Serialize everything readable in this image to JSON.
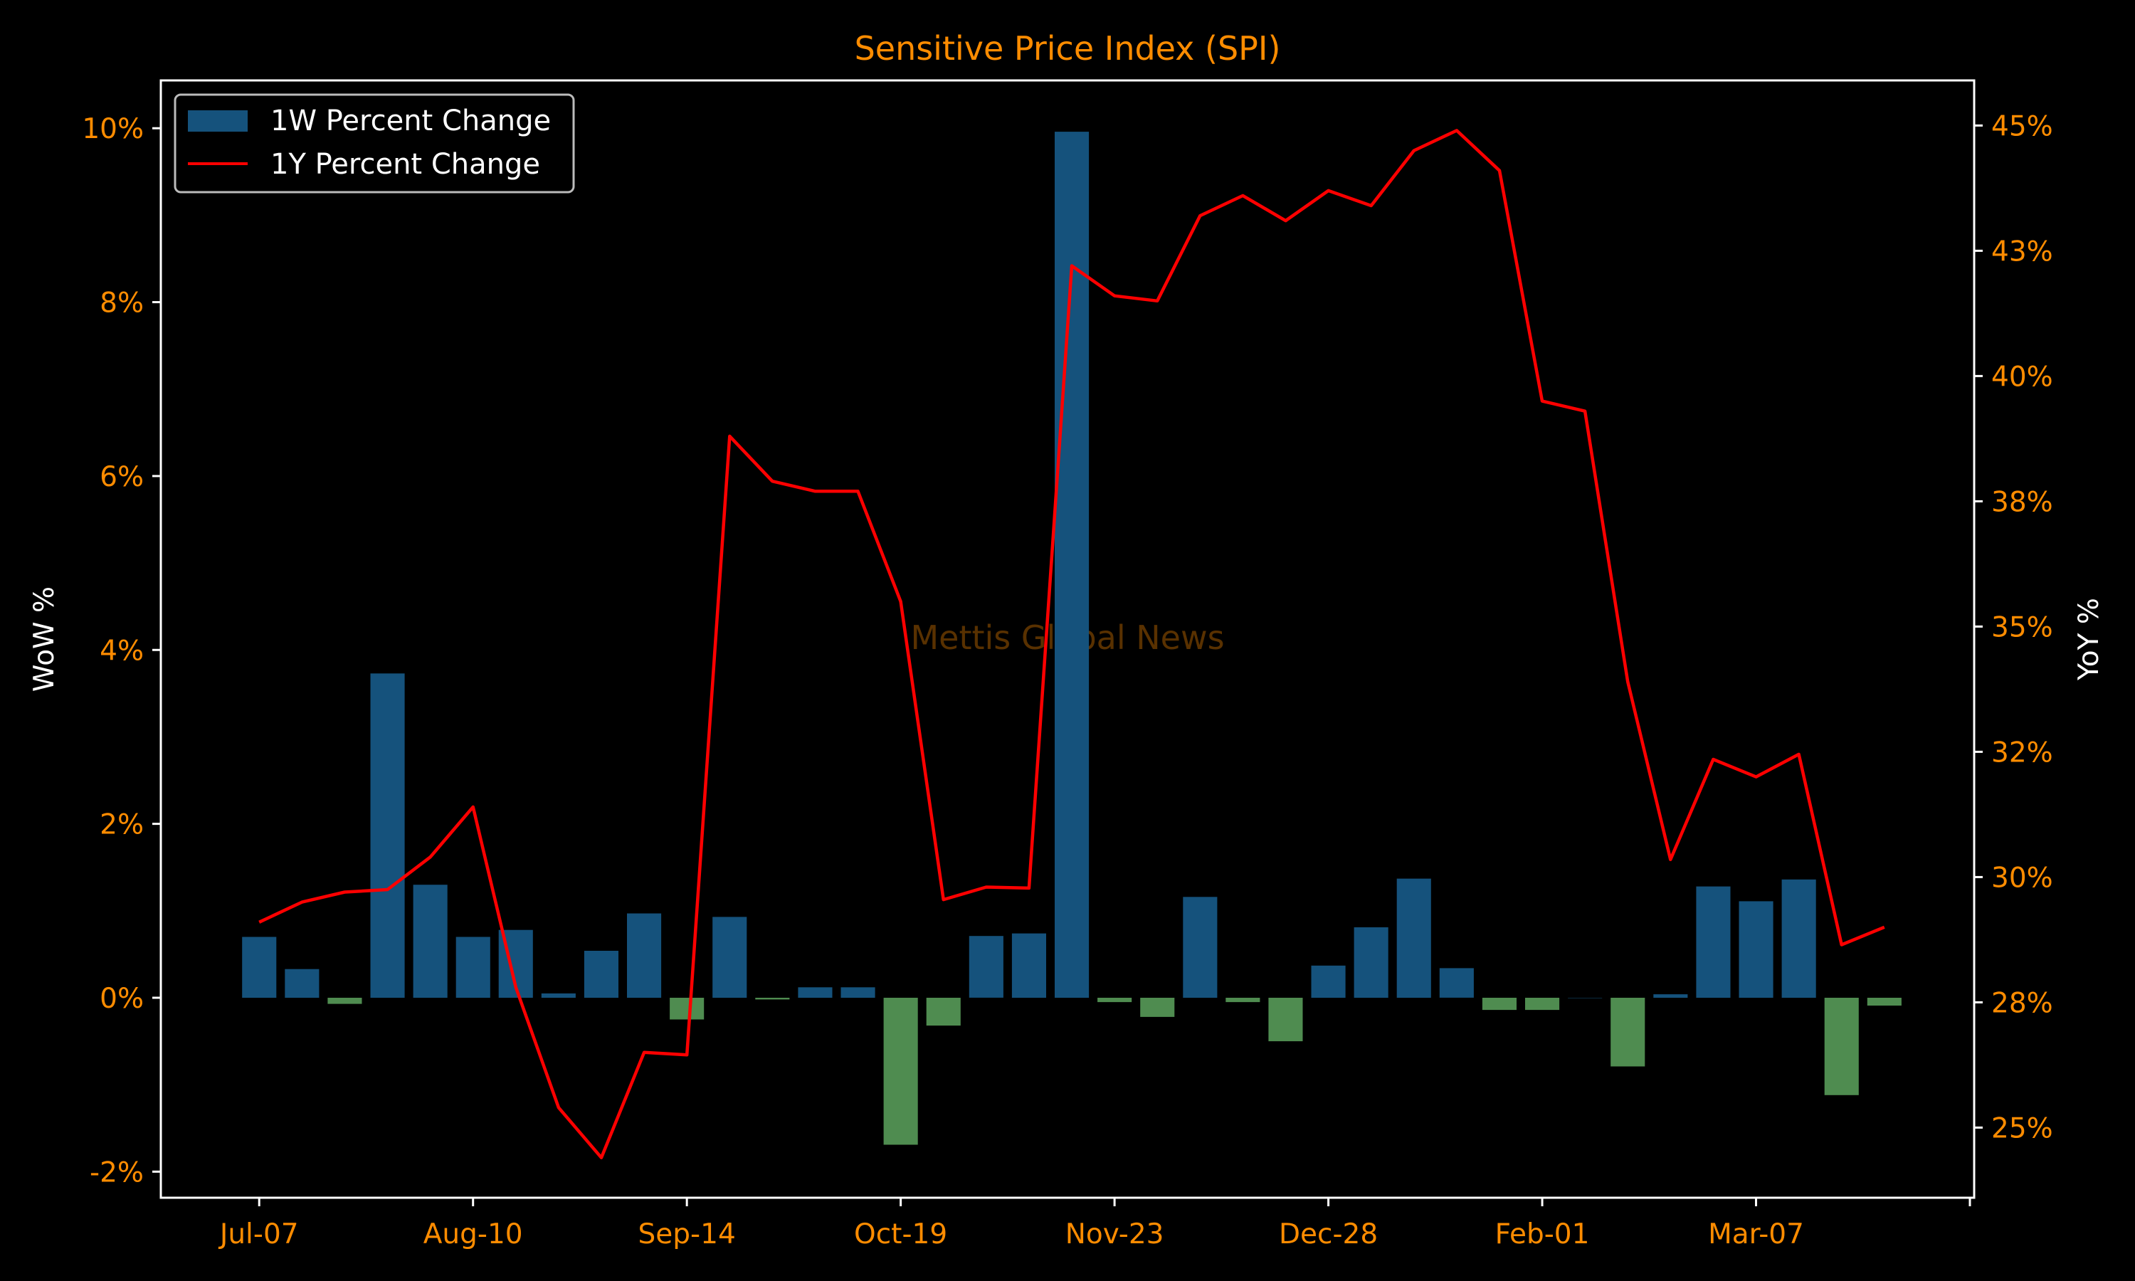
{
  "chart_data": {
    "type": "bar",
    "title": "Sensitive Price Index (SPI)",
    "watermark": "Mettis Global News",
    "left_axis": {
      "label": "WoW %",
      "ylim": [
        -2.3,
        10.55
      ],
      "ticks": [
        -2,
        0,
        2,
        4,
        6,
        8,
        10
      ],
      "tick_labels": [
        "-2%",
        "0%",
        "2%",
        "4%",
        "6%",
        "8%",
        "10%"
      ]
    },
    "right_axis": {
      "label": "YoY %",
      "ylim": [
        23.6,
        45.9
      ],
      "ticks": [
        25,
        27.5,
        30,
        32.5,
        35,
        37.5,
        40,
        42.5,
        45
      ],
      "tick_labels": [
        "25%",
        "28%",
        "30%",
        "32%",
        "35%",
        "38%",
        "40%",
        "43%",
        "45%"
      ]
    },
    "x_tick_labels": [
      "Jul-07",
      "Aug-10",
      "Sep-14",
      "Oct-19",
      "Nov-23",
      "Dec-28",
      "Feb-01",
      "Mar-07",
      ""
    ],
    "x_tick_index": [
      0,
      5,
      10,
      15,
      20,
      25,
      30,
      35,
      40
    ],
    "x_range": [
      -2.3,
      40.1
    ],
    "grid": false,
    "legend_position": "top-left",
    "colors": {
      "positive_bar": "#15527c",
      "negative_bar": "#4f8c50",
      "line": "#ff0000",
      "axis": "#ffffff",
      "tick_text": "#ff8c00"
    },
    "series": [
      {
        "name": "1W Percent Change",
        "type": "bar",
        "axis": "left",
        "values": [
          0.7,
          0.33,
          -0.07,
          3.73,
          1.3,
          0.7,
          0.78,
          0.05,
          0.54,
          0.97,
          -0.25,
          0.93,
          -0.02,
          0.12,
          0.12,
          -1.69,
          -0.32,
          0.71,
          0.74,
          9.96,
          -0.05,
          -0.22,
          1.16,
          -0.05,
          -0.5,
          0.37,
          0.81,
          1.37,
          0.34,
          -0.14,
          -0.14,
          0.0,
          -0.79,
          0.04,
          1.28,
          1.11,
          1.36,
          -1.12,
          -0.09
        ]
      },
      {
        "name": "1Y Percent Change",
        "type": "line",
        "axis": "right",
        "values": [
          29.1,
          29.5,
          29.7,
          29.75,
          30.4,
          31.4,
          27.8,
          25.4,
          24.4,
          26.5,
          26.45,
          38.8,
          37.9,
          37.7,
          37.7,
          35.5,
          29.55,
          29.8,
          29.78,
          42.2,
          41.6,
          41.5,
          43.2,
          43.6,
          43.1,
          43.7,
          43.4,
          44.5,
          44.9,
          44.1,
          39.5,
          39.3,
          33.9,
          30.35,
          32.35,
          32.0,
          32.45,
          28.65,
          29.0
        ]
      }
    ]
  }
}
